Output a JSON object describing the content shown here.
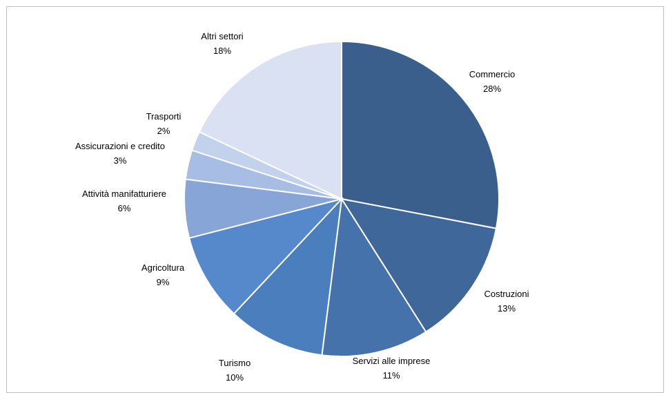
{
  "chart_data": {
    "type": "pie",
    "title": "",
    "slices": [
      {
        "label": "Commercio",
        "value": 28,
        "value_label": "28%",
        "color": "#3a5f8c"
      },
      {
        "label": "Costruzioni",
        "value": 13,
        "value_label": "13%",
        "color": "#3f6799"
      },
      {
        "label": "Servizi alle imprese",
        "value": 11,
        "value_label": "11%",
        "color": "#4572ab"
      },
      {
        "label": "Turismo",
        "value": 10,
        "value_label": "10%",
        "color": "#4a7ebc"
      },
      {
        "label": "Agricoltura",
        "value": 9,
        "value_label": "9%",
        "color": "#5689cc"
      },
      {
        "label": "Attività manifatturiere",
        "value": 6,
        "value_label": "6%",
        "color": "#87a5d6"
      },
      {
        "label": "Assicurazioni e credito",
        "value": 3,
        "value_label": "3%",
        "color": "#a8bde3"
      },
      {
        "label": "Trasporti",
        "value": 2,
        "value_label": "2%",
        "color": "#c2d1ec"
      },
      {
        "label": "Altri settori",
        "value": 18,
        "value_label": "18%",
        "color": "#d9e1f2"
      }
    ]
  }
}
